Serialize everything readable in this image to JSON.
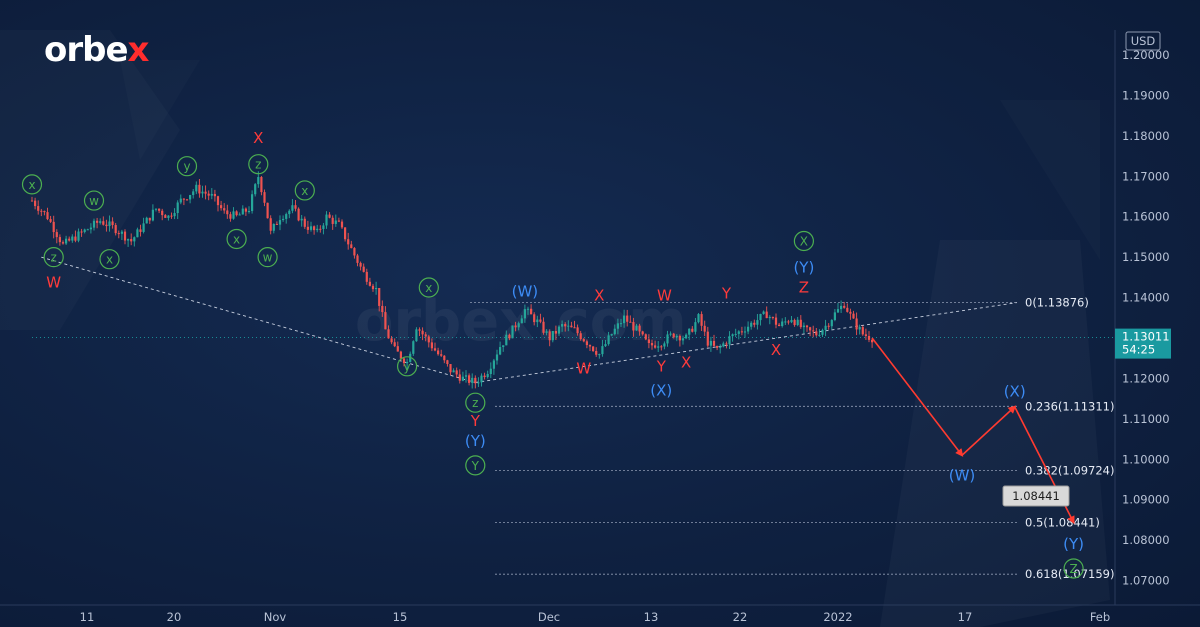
{
  "brand": {
    "logo_main": "orbe",
    "logo_x": "x"
  },
  "watermark": "orbex.com",
  "colors": {
    "background": "#0f2141",
    "up": "#26a69a",
    "down": "#ef5350",
    "red_label": "#ff3b3b",
    "blue_label": "#3d8cf5",
    "green_label": "#4caf50",
    "arrow": "#ff3b30"
  },
  "currency": "USD",
  "last_price": "1.13011",
  "countdown": "54:25",
  "callout": "1.08441",
  "chart_data": {
    "type": "candlestick",
    "instrument_quote": "USD",
    "ylim": [
      1.065,
      1.205
    ],
    "y_ticks": [
      "1.07000",
      "1.08000",
      "1.09000",
      "1.10000",
      "1.11000",
      "1.12000",
      "1.13000",
      "1.14000",
      "1.15000",
      "1.16000",
      "1.17000",
      "1.18000",
      "1.19000",
      "1.20000"
    ],
    "x_ticks": [
      "11",
      "20",
      "Nov",
      "15",
      "Dec",
      "13",
      "22",
      "2022",
      "17",
      "Feb"
    ],
    "fib_levels": [
      {
        "label": "0(1.13876)",
        "value": 1.13876
      },
      {
        "label": "0.236(1.11311)",
        "value": 1.11311
      },
      {
        "label": "0.382(1.09724)",
        "value": 1.09724
      },
      {
        "label": "0.5(1.08441)",
        "value": 1.08441
      },
      {
        "label": "0.618(1.07159)",
        "value": 1.07159
      }
    ],
    "price_path": [
      [
        0,
        1.164
      ],
      [
        5,
        1.16
      ],
      [
        10,
        1.153
      ],
      [
        16,
        1.156
      ],
      [
        22,
        1.159
      ],
      [
        27,
        1.157
      ],
      [
        32,
        1.154
      ],
      [
        36,
        1.158
      ],
      [
        40,
        1.162
      ],
      [
        44,
        1.16
      ],
      [
        48,
        1.164
      ],
      [
        53,
        1.167
      ],
      [
        58,
        1.165
      ],
      [
        62,
        1.161
      ],
      [
        66,
        1.16
      ],
      [
        70,
        1.162
      ],
      [
        73,
        1.17
      ],
      [
        75,
        1.164
      ],
      [
        77,
        1.156
      ],
      [
        80,
        1.16
      ],
      [
        84,
        1.162
      ],
      [
        88,
        1.158
      ],
      [
        92,
        1.156
      ],
      [
        95,
        1.16
      ],
      [
        99,
        1.158
      ],
      [
        103,
        1.152
      ],
      [
        107,
        1.146
      ],
      [
        111,
        1.142
      ],
      [
        114,
        1.132
      ],
      [
        117,
        1.127
      ],
      [
        121,
        1.124
      ],
      [
        124,
        1.133
      ],
      [
        127,
        1.13
      ],
      [
        131,
        1.126
      ],
      [
        135,
        1.122
      ],
      [
        139,
        1.12
      ],
      [
        143,
        1.119
      ],
      [
        147,
        1.122
      ],
      [
        151,
        1.128
      ],
      [
        155,
        1.132
      ],
      [
        159,
        1.137
      ],
      [
        163,
        1.134
      ],
      [
        167,
        1.13
      ],
      [
        171,
        1.133
      ],
      [
        175,
        1.132
      ],
      [
        179,
        1.129
      ],
      [
        183,
        1.126
      ],
      [
        187,
        1.131
      ],
      [
        191,
        1.135
      ],
      [
        195,
        1.132
      ],
      [
        199,
        1.128
      ],
      [
        203,
        1.129
      ],
      [
        207,
        1.131
      ],
      [
        211,
        1.13
      ],
      [
        215,
        1.135
      ],
      [
        218,
        1.129
      ],
      [
        221,
        1.127
      ],
      [
        225,
        1.13
      ],
      [
        229,
        1.132
      ],
      [
        233,
        1.134
      ],
      [
        237,
        1.136
      ],
      [
        241,
        1.133
      ],
      [
        245,
        1.135
      ],
      [
        249,
        1.132
      ],
      [
        253,
        1.131
      ],
      [
        256,
        1.133
      ],
      [
        259,
        1.136
      ],
      [
        262,
        1.1385
      ],
      [
        265,
        1.134
      ],
      [
        268,
        1.131
      ],
      [
        271,
        1.13
      ]
    ],
    "n_bars": 272,
    "projection": [
      {
        "bar": 271,
        "value": 1.13
      },
      {
        "bar": 300,
        "value": 1.101
      },
      {
        "bar": 317,
        "value": 1.113
      },
      {
        "bar": 336,
        "value": 1.0844
      }
    ],
    "labels": [
      {
        "t": "z",
        "bar": 7,
        "value": 1.15,
        "color": "green",
        "circle": true
      },
      {
        "t": "W",
        "bar": 7,
        "value": 1.1437,
        "color": "red",
        "circle": false
      },
      {
        "t": "x",
        "bar": 0,
        "value": 1.168,
        "color": "green",
        "circle": true
      },
      {
        "t": "w",
        "bar": 20,
        "value": 1.164,
        "color": "green",
        "circle": true
      },
      {
        "t": "x",
        "bar": 25,
        "value": 1.1495,
        "color": "green",
        "circle": true
      },
      {
        "t": "y",
        "bar": 50,
        "value": 1.1725,
        "color": "green",
        "circle": true
      },
      {
        "t": "x",
        "bar": 66,
        "value": 1.1545,
        "color": "green",
        "circle": true
      },
      {
        "t": "X",
        "bar": 73,
        "value": 1.1795,
        "color": "red",
        "circle": false
      },
      {
        "t": "z",
        "bar": 73,
        "value": 1.173,
        "color": "green",
        "circle": true
      },
      {
        "t": "w",
        "bar": 76,
        "value": 1.15,
        "color": "green",
        "circle": true
      },
      {
        "t": "x",
        "bar": 88,
        "value": 1.1665,
        "color": "green",
        "circle": true
      },
      {
        "t": "x",
        "bar": 128,
        "value": 1.1425,
        "color": "green",
        "circle": true
      },
      {
        "t": "y",
        "bar": 121,
        "value": 1.123,
        "color": "green",
        "circle": true
      },
      {
        "t": "z",
        "bar": 143,
        "value": 1.114,
        "color": "green",
        "circle": true
      },
      {
        "t": "Y",
        "bar": 143,
        "value": 1.1095,
        "color": "red",
        "circle": false
      },
      {
        "t": "(Y)",
        "bar": 143,
        "value": 1.1045,
        "color": "blue",
        "circle": false
      },
      {
        "t": "Y",
        "bar": 143,
        "value": 1.0985,
        "color": "green",
        "circle": true
      },
      {
        "t": "(W)",
        "bar": 159,
        "value": 1.1415,
        "color": "blue",
        "circle": false
      },
      {
        "t": "W",
        "bar": 178,
        "value": 1.1225,
        "color": "red",
        "circle": false
      },
      {
        "t": "X",
        "bar": 183,
        "value": 1.1405,
        "color": "red",
        "circle": false
      },
      {
        "t": "W",
        "bar": 204,
        "value": 1.1405,
        "color": "red",
        "circle": false
      },
      {
        "t": "Y",
        "bar": 203,
        "value": 1.123,
        "color": "red",
        "circle": false
      },
      {
        "t": "(X)",
        "bar": 203,
        "value": 1.117,
        "color": "blue",
        "circle": false
      },
      {
        "t": "X",
        "bar": 211,
        "value": 1.124,
        "color": "red",
        "circle": false
      },
      {
        "t": "Y",
        "bar": 224,
        "value": 1.141,
        "color": "red",
        "circle": false
      },
      {
        "t": "X",
        "bar": 240,
        "value": 1.127,
        "color": "red",
        "circle": false
      },
      {
        "t": "X",
        "bar": 249,
        "value": 1.154,
        "color": "green",
        "circle": true
      },
      {
        "t": "(Y)",
        "bar": 249,
        "value": 1.1475,
        "color": "blue",
        "circle": false
      },
      {
        "t": "Z",
        "bar": 249,
        "value": 1.1425,
        "color": "red",
        "circle": false
      },
      {
        "t": "(W)",
        "bar": 300,
        "value": 1.096,
        "color": "blue",
        "circle": false
      },
      {
        "t": "(X)",
        "bar": 317,
        "value": 1.1168,
        "color": "blue",
        "circle": false
      },
      {
        "t": "(Y)",
        "bar": 336,
        "value": 1.079,
        "color": "blue",
        "circle": false
      },
      {
        "t": "Z",
        "bar": 336,
        "value": 1.073,
        "color": "green",
        "circle": true
      }
    ]
  }
}
